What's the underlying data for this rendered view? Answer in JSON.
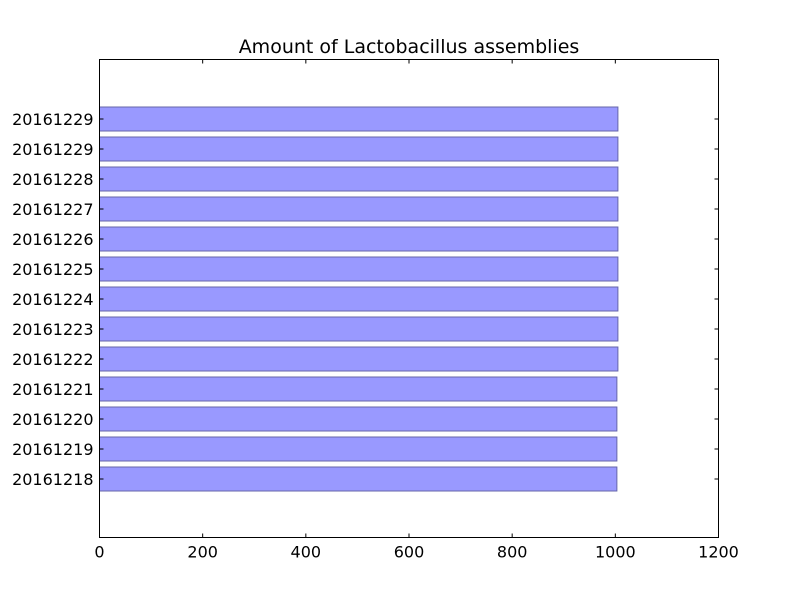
{
  "chart_data": {
    "type": "bar",
    "orientation": "horizontal",
    "title": "Amount of Lactobacillus assemblies",
    "xlabel": "",
    "ylabel": "",
    "xlim": [
      0,
      1200
    ],
    "xticks": [
      0,
      200,
      400,
      600,
      800,
      1000,
      1200
    ],
    "grid": false,
    "categories": [
      "20161218",
      "20161219",
      "20161220",
      "20161221",
      "20161222",
      "20161223",
      "20161224",
      "20161225",
      "20161226",
      "20161227",
      "20161228",
      "20161229",
      "20161229"
    ],
    "values": [
      1003,
      1003,
      1003,
      1003,
      1005,
      1005,
      1005,
      1005,
      1005,
      1005,
      1005,
      1005,
      1005
    ],
    "bar_color": "#9999ff",
    "bar_edge_color": "#6666aa"
  }
}
